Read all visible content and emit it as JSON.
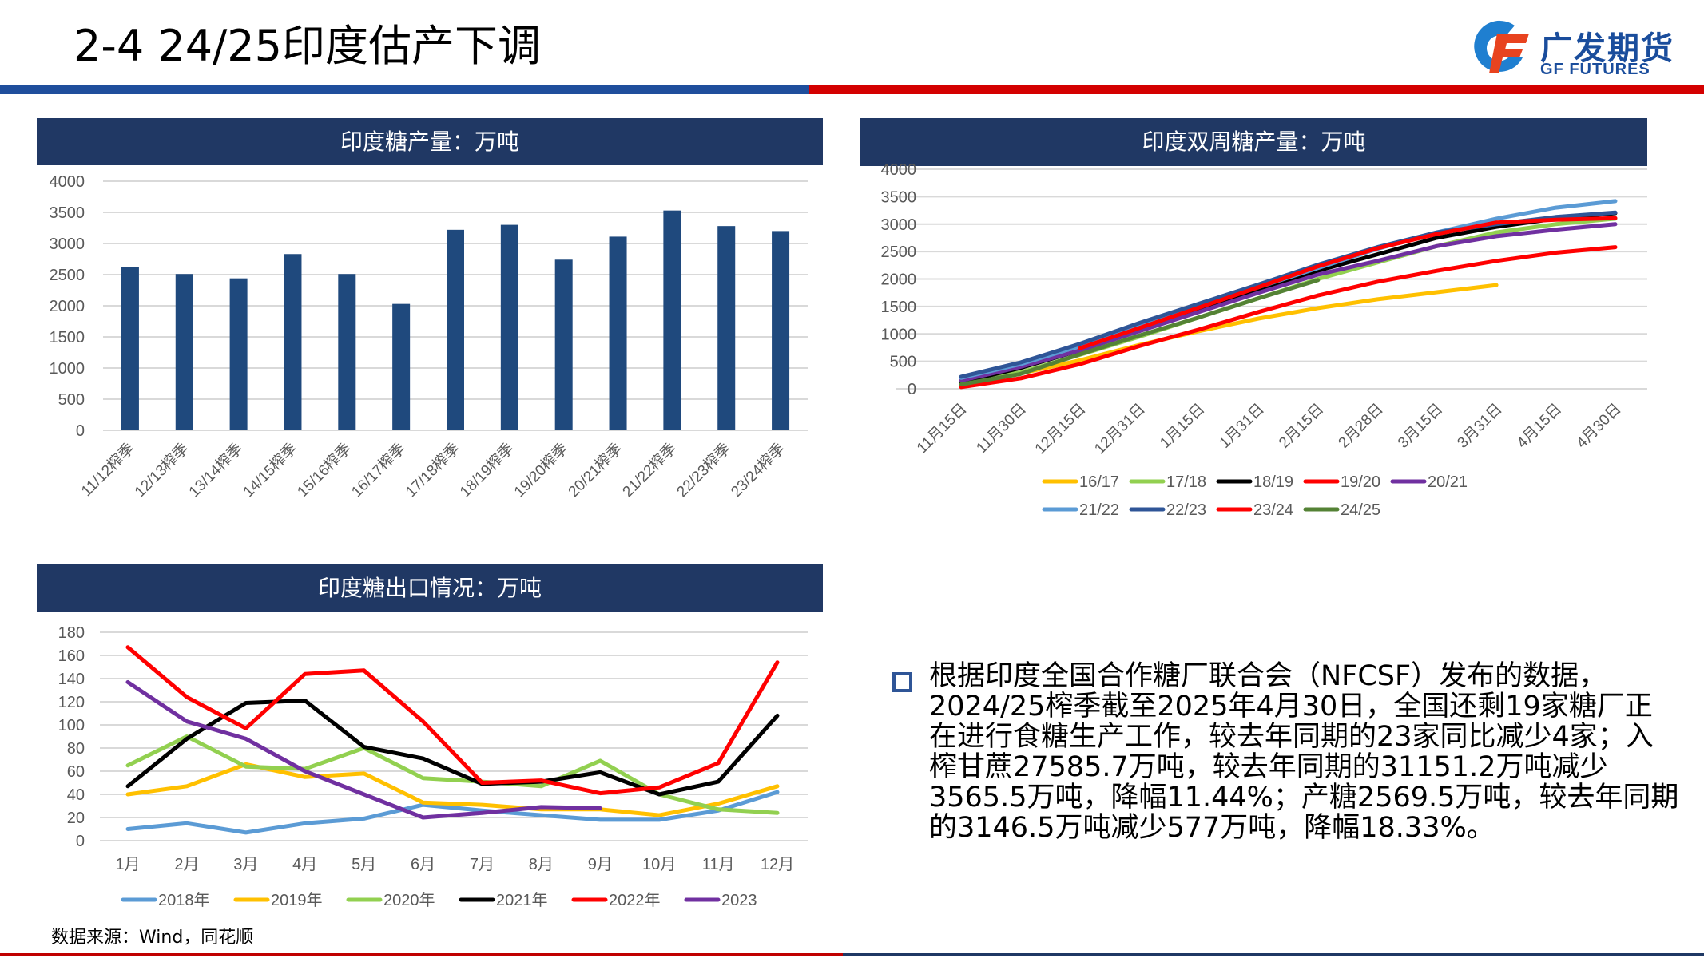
{
  "header": {
    "title": "2-4 24/25印度估产下调"
  },
  "logo": {
    "cn": "广发期货",
    "en": "GF FUTURES"
  },
  "colors": {
    "header_blue": "#1f4e9c",
    "header_red": "#d40000",
    "panel_title_bg": "#203864",
    "bar": "#1f497d"
  },
  "chart_data": [
    {
      "type": "bar",
      "title": "印度糖产量：万吨",
      "categories": [
        "11/12榨季",
        "12/13榨季",
        "13/14榨季",
        "14/15榨季",
        "15/16榨季",
        "16/17榨季",
        "17/18榨季",
        "18/19榨季",
        "19/20榨季",
        "20/21榨季",
        "21/22榨季",
        "22/23榨季",
        "23/24榨季"
      ],
      "values": [
        2620,
        2510,
        2440,
        2830,
        2510,
        2030,
        3220,
        3300,
        2740,
        3110,
        3530,
        3280,
        3200
      ],
      "yticks": [
        0,
        500,
        1000,
        1500,
        2000,
        2500,
        3000,
        3500,
        4000
      ],
      "ylim": [
        0,
        4000
      ],
      "grid": true,
      "color": "#1f497d"
    },
    {
      "type": "line",
      "title": "印度双周糖产量：万吨",
      "categories": [
        "11月15日",
        "11月30日",
        "12月15日",
        "12月31日",
        "1月15日",
        "1月31日",
        "2月15日",
        "2月28日",
        "3月15日",
        "3月31日",
        "4月15日",
        "4月30日"
      ],
      "yticks": [
        0,
        500,
        1000,
        1500,
        2000,
        2500,
        3000,
        3500,
        4000
      ],
      "ylim": [
        0,
        4000
      ],
      "grid": true,
      "legend_position": "bottom",
      "series": [
        {
          "name": "16/17",
          "color": "#ffc000",
          "values": [
            100,
            280,
            520,
            800,
            1050,
            1280,
            1470,
            1630,
            1760,
            1890,
            null,
            null
          ]
        },
        {
          "name": "17/18",
          "color": "#92d050",
          "values": [
            100,
            300,
            620,
            950,
            1300,
            1650,
            2000,
            2300,
            2600,
            2850,
            3000,
            3100
          ]
        },
        {
          "name": "18/19",
          "color": "#000000",
          "values": [
            120,
            380,
            700,
            1100,
            1450,
            1800,
            2150,
            2450,
            2750,
            2950,
            3100,
            3200
          ]
        },
        {
          "name": "19/20",
          "color": "#ff0000",
          "values": [
            30,
            190,
            450,
            780,
            1080,
            1400,
            1700,
            1950,
            2150,
            2330,
            2480,
            2580
          ]
        },
        {
          "name": "20/21",
          "color": "#7030a0",
          "values": [
            150,
            400,
            700,
            1050,
            1400,
            1750,
            2080,
            2330,
            2600,
            2780,
            2900,
            3000
          ]
        },
        {
          "name": "21/22",
          "color": "#5b9bd5",
          "values": [
            200,
            450,
            780,
            1150,
            1500,
            1850,
            2200,
            2550,
            2850,
            3100,
            3300,
            3420
          ]
        },
        {
          "name": "22/23",
          "color": "#2f5597",
          "values": [
            220,
            480,
            820,
            1200,
            1550,
            1900,
            2260,
            2580,
            2850,
            3000,
            3130,
            3210
          ]
        },
        {
          "name": "23/24",
          "color": "#ff0000",
          "values": [
            null,
            null,
            740,
            1110,
            1480,
            1850,
            2230,
            2560,
            2820,
            3030,
            3080,
            3110
          ]
        },
        {
          "name": "24/25",
          "color": "#548235",
          "values": [
            80,
            270,
            630,
            970,
            1300,
            1650,
            1980,
            null,
            null,
            null,
            null,
            null
          ]
        }
      ]
    },
    {
      "type": "line",
      "title": "印度糖出口情况：万吨",
      "categories": [
        "1月",
        "2月",
        "3月",
        "4月",
        "5月",
        "6月",
        "7月",
        "8月",
        "9月",
        "10月",
        "11月",
        "12月"
      ],
      "yticks": [
        0,
        20,
        40,
        60,
        80,
        100,
        120,
        140,
        160,
        180
      ],
      "ylim": [
        0,
        180
      ],
      "grid": true,
      "legend_position": "bottom",
      "series": [
        {
          "name": "2018年",
          "color": "#5b9bd5",
          "values": [
            10,
            15,
            7,
            15,
            19,
            31,
            26,
            22,
            18,
            18,
            26,
            42
          ]
        },
        {
          "name": "2019年",
          "color": "#ffc000",
          "values": [
            40,
            47,
            66,
            55,
            58,
            33,
            31,
            27,
            27,
            22,
            32,
            47
          ]
        },
        {
          "name": "2020年",
          "color": "#92d050",
          "values": [
            65,
            90,
            64,
            62,
            80,
            54,
            51,
            47,
            69,
            40,
            27,
            24
          ]
        },
        {
          "name": "2021年",
          "color": "#000000",
          "values": [
            47,
            88,
            119,
            121,
            81,
            71,
            49,
            51,
            59,
            40,
            51,
            108
          ]
        },
        {
          "name": "2022年",
          "color": "#ff0000",
          "values": [
            167,
            124,
            97,
            144,
            147,
            103,
            50,
            52,
            41,
            46,
            67,
            154
          ]
        },
        {
          "name": "2023",
          "color": "#7030a0",
          "values": [
            137,
            103,
            88,
            60,
            40,
            20,
            24,
            29,
            28,
            null,
            null,
            null
          ]
        }
      ]
    }
  ],
  "source": "数据来源：Wind，同花顺",
  "summary": "根据印度全国合作糖厂联合会（NFCSF）发布的数据，2024/25榨季截至2025年4月30日，全国还剩19家糖厂正在进行食糖生产工作，较去年同期的23家同比减少4家；入榨甘蔗27585.7万吨，较去年同期的31151.2万吨减少3565.5万吨，降幅11.44%；产糖2569.5万吨，较去年同期的3146.5万吨减少577万吨，降幅18.33%。"
}
